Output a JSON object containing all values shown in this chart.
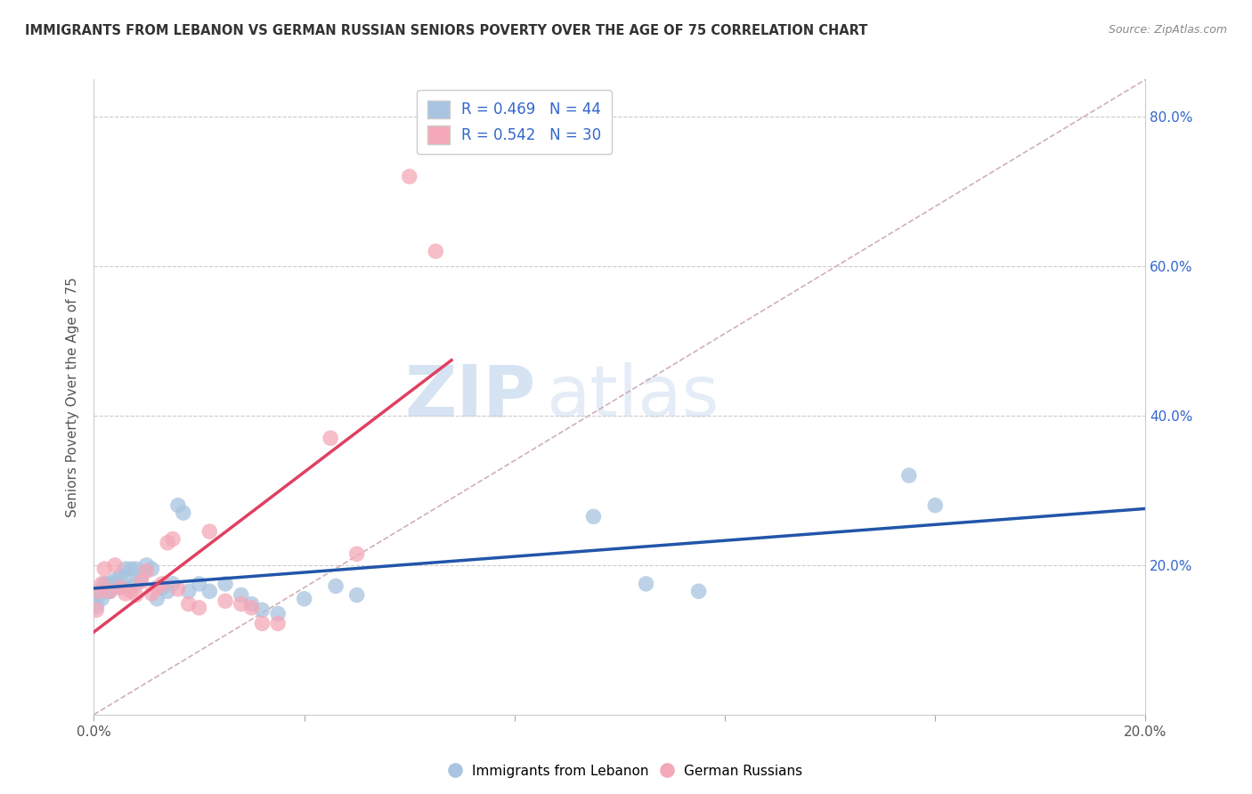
{
  "title": "IMMIGRANTS FROM LEBANON VS GERMAN RUSSIAN SENIORS POVERTY OVER THE AGE OF 75 CORRELATION CHART",
  "source": "Source: ZipAtlas.com",
  "ylabel": "Seniors Poverty Over the Age of 75",
  "xlim": [
    0.0,
    0.2
  ],
  "ylim": [
    0.0,
    0.85
  ],
  "xticks": [
    0.0,
    0.04,
    0.08,
    0.12,
    0.16,
    0.2
  ],
  "yticks": [
    0.0,
    0.2,
    0.4,
    0.6,
    0.8
  ],
  "right_ytick_labels": [
    "20.0%",
    "40.0%",
    "60.0%",
    "80.0%"
  ],
  "right_yticks": [
    0.2,
    0.4,
    0.6,
    0.8
  ],
  "blue_color": "#a8c4e0",
  "pink_color": "#f4a8b8",
  "blue_line_color": "#2255aa",
  "pink_line_color": "#e04060",
  "diag_color": "#d0b0b8",
  "legend_r1": "R = 0.469",
  "legend_n1": "N = 44",
  "legend_r2": "R = 0.542",
  "legend_n2": "N = 30",
  "watermark_zip": "ZIP",
  "watermark_atlas": "atlas",
  "blue_points_x": [
    0.0005,
    0.001,
    0.0015,
    0.002,
    0.002,
    0.0025,
    0.003,
    0.003,
    0.003,
    0.004,
    0.004,
    0.005,
    0.005,
    0.006,
    0.006,
    0.007,
    0.007,
    0.008,
    0.008,
    0.009,
    0.01,
    0.011,
    0.012,
    0.013,
    0.014,
    0.015,
    0.016,
    0.017,
    0.018,
    0.02,
    0.022,
    0.025,
    0.028,
    0.03,
    0.032,
    0.035,
    0.04,
    0.046,
    0.05,
    0.095,
    0.105,
    0.115,
    0.155,
    0.16
  ],
  "blue_points_y": [
    0.145,
    0.16,
    0.155,
    0.175,
    0.17,
    0.175,
    0.165,
    0.175,
    0.165,
    0.18,
    0.175,
    0.185,
    0.17,
    0.195,
    0.185,
    0.195,
    0.17,
    0.195,
    0.175,
    0.185,
    0.2,
    0.195,
    0.155,
    0.17,
    0.165,
    0.175,
    0.28,
    0.27,
    0.165,
    0.175,
    0.165,
    0.175,
    0.16,
    0.148,
    0.14,
    0.135,
    0.155,
    0.172,
    0.16,
    0.265,
    0.175,
    0.165,
    0.32,
    0.28
  ],
  "pink_points_x": [
    0.0005,
    0.001,
    0.0015,
    0.002,
    0.003,
    0.004,
    0.005,
    0.006,
    0.007,
    0.008,
    0.009,
    0.01,
    0.011,
    0.012,
    0.013,
    0.014,
    0.015,
    0.016,
    0.018,
    0.02,
    0.022,
    0.025,
    0.028,
    0.03,
    0.032,
    0.035,
    0.045,
    0.05,
    0.06,
    0.065
  ],
  "pink_points_y": [
    0.14,
    0.165,
    0.175,
    0.195,
    0.165,
    0.2,
    0.17,
    0.162,
    0.165,
    0.16,
    0.178,
    0.192,
    0.162,
    0.17,
    0.175,
    0.23,
    0.235,
    0.168,
    0.148,
    0.143,
    0.245,
    0.152,
    0.148,
    0.143,
    0.122,
    0.122,
    0.37,
    0.215,
    0.72,
    0.62
  ]
}
